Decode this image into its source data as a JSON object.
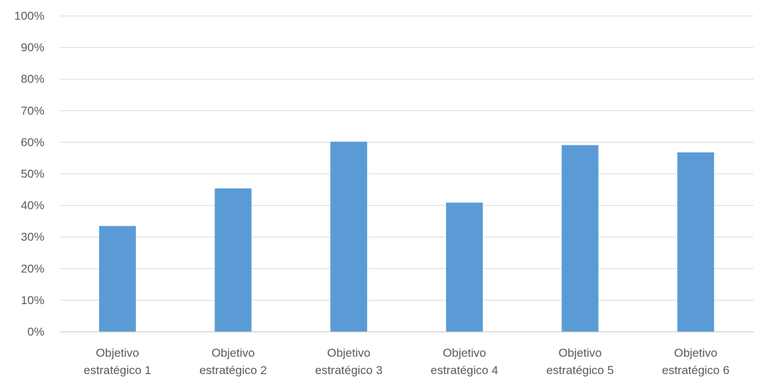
{
  "chart_data": {
    "type": "bar",
    "categories": [
      [
        "Objetivo",
        "estratégico 1"
      ],
      [
        "Objetivo",
        "estratégico 2"
      ],
      [
        "Objetivo",
        "estratégico 3"
      ],
      [
        "Objetivo",
        "estratégico 4"
      ],
      [
        "Objetivo",
        "estratégico 5"
      ],
      [
        "Objetivo",
        "estratégico 6"
      ]
    ],
    "values": [
      33.5,
      45.4,
      60.2,
      40.9,
      59.1,
      56.8
    ],
    "y_ticks": [
      "0%",
      "10%",
      "20%",
      "30%",
      "40%",
      "50%",
      "60%",
      "70%",
      "80%",
      "90%",
      "100%"
    ],
    "ylim": [
      0,
      100
    ],
    "unit": "%",
    "title": "",
    "xlabel": "",
    "ylabel": "",
    "grid": true,
    "legend": "none",
    "bar_color": "#5b9bd5"
  }
}
